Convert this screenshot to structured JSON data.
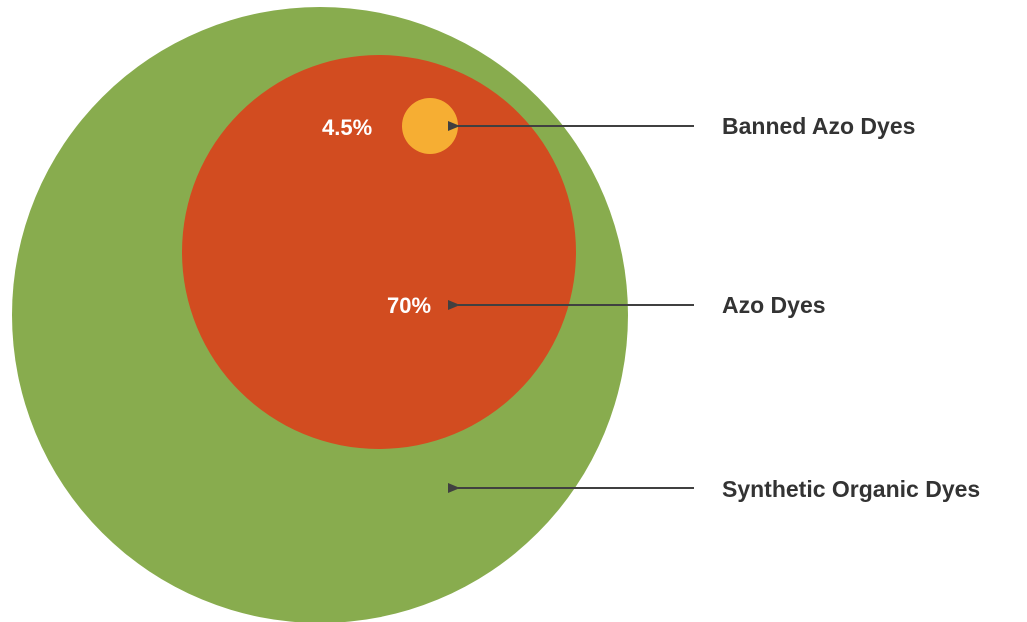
{
  "colors": {
    "synthetic": "#88AC4E",
    "azo": "#D24C20",
    "banned": "#F6AE33",
    "arrow": "#404040",
    "label_text": "#333333",
    "value_text": "#FFFFFF"
  },
  "circles": [
    {
      "id": "synthetic",
      "label": "Synthetic Organic Dyes",
      "value_text": ""
    },
    {
      "id": "azo",
      "label": "Azo Dyes",
      "value_text": "70%"
    },
    {
      "id": "banned",
      "label": "Banned Azo Dyes",
      "value_text": "4.5%"
    }
  ]
}
